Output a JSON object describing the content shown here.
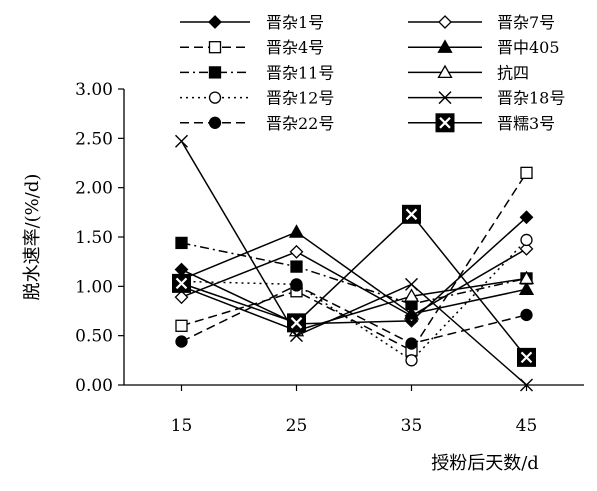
{
  "chart_data": {
    "type": "line",
    "title": "",
    "xlabel": "授粉后天数/d",
    "ylabel": "脱水速率/(%/d)",
    "x": [
      15,
      25,
      35,
      45
    ],
    "xticks": [
      "15",
      "25",
      "35",
      "45"
    ],
    "yticks": [
      "0.00",
      "0.50",
      "1.00",
      "1.50",
      "2.00",
      "2.50",
      "3.00"
    ],
    "xlim": [
      10,
      50
    ],
    "ylim": [
      0,
      3
    ],
    "grid": false,
    "legend_position": "top",
    "series": [
      {
        "name": "晋杂1号",
        "marker": "diamond-filled",
        "dash": "solid",
        "values": [
          1.17,
          0.62,
          0.65,
          1.7
        ]
      },
      {
        "name": "晋杂7号",
        "marker": "diamond-open",
        "dash": "solid",
        "values": [
          0.89,
          1.35,
          0.7,
          1.38
        ]
      },
      {
        "name": "晋杂4号",
        "marker": "square-open",
        "dash": "dashed",
        "values": [
          0.6,
          0.95,
          0.35,
          2.15
        ]
      },
      {
        "name": "晋中405",
        "marker": "triangle-filled",
        "dash": "solid",
        "values": [
          1.07,
          1.55,
          0.72,
          0.97
        ]
      },
      {
        "name": "晋杂11号",
        "marker": "square-filled",
        "dash": "dashdot",
        "values": [
          1.44,
          1.2,
          0.82,
          1.08
        ]
      },
      {
        "name": "抗四",
        "marker": "triangle-open",
        "dash": "solid",
        "values": [
          1.0,
          0.55,
          0.9,
          1.08
        ]
      },
      {
        "name": "晋杂12号",
        "marker": "circle-open",
        "dash": "dotted",
        "values": [
          1.05,
          1.02,
          0.25,
          1.47
        ]
      },
      {
        "name": "晋杂18号",
        "marker": "x",
        "dash": "solid",
        "values": [
          2.47,
          0.5,
          1.02,
          0.0
        ]
      },
      {
        "name": "晋杂22号",
        "marker": "circle-filled",
        "dash": "dashed",
        "values": [
          0.44,
          1.01,
          0.42,
          0.71
        ]
      },
      {
        "name": "晋糯3号",
        "marker": "boxed-x",
        "dash": "solid",
        "values": [
          1.03,
          0.63,
          1.73,
          0.28
        ]
      }
    ]
  }
}
